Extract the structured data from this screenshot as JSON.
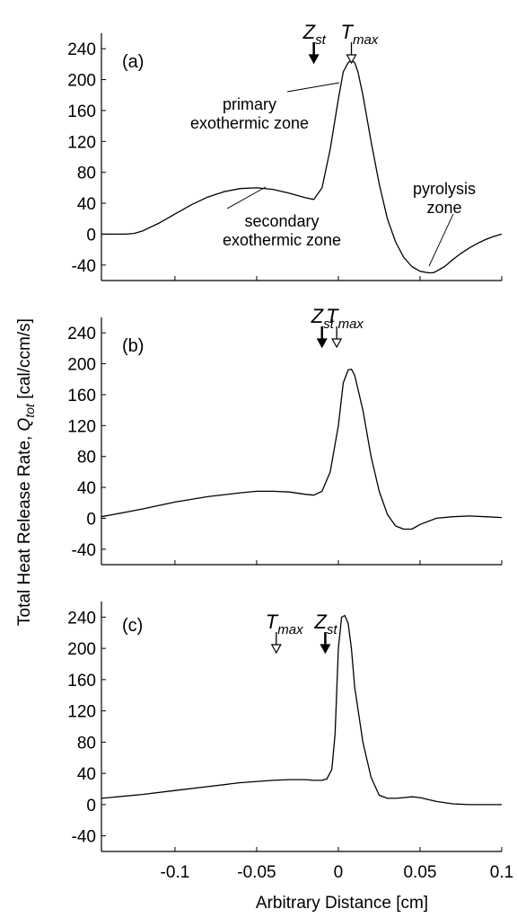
{
  "chart_data": {
    "type": "line",
    "xlabel": "Arbitrary Distance [cm]",
    "ylabel": {
      "main": "Total Heat Release Rate, ",
      "symbol": "Q",
      "sub": "tot",
      "unit": " [cal/ccm/s]"
    },
    "xlim": [
      -0.145,
      0.1
    ],
    "ylim": [
      -60,
      260
    ],
    "xticks": [
      -0.1,
      -0.05,
      0,
      0.05,
      0.1
    ],
    "xtick_labels": [
      "-0.1",
      "-0.05",
      "0",
      "0.05",
      "0.1"
    ],
    "yticks": [
      -40,
      0,
      40,
      80,
      120,
      160,
      200,
      240
    ],
    "ytick_labels": [
      "-40",
      "0",
      "40",
      "80",
      "120",
      "160",
      "200",
      "240"
    ],
    "panels": [
      {
        "label": "(a)",
        "x": [
          -0.145,
          -0.13,
          -0.125,
          -0.12,
          -0.11,
          -0.1,
          -0.09,
          -0.08,
          -0.07,
          -0.06,
          -0.05,
          -0.04,
          -0.03,
          -0.02,
          -0.015,
          -0.01,
          -0.005,
          0,
          0.003,
          0.006,
          0.008,
          0.01,
          0.012,
          0.015,
          0.02,
          0.025,
          0.03,
          0.035,
          0.04,
          0.045,
          0.05,
          0.055,
          0.058,
          0.06,
          0.065,
          0.07,
          0.075,
          0.08,
          0.085,
          0.09,
          0.095,
          0.1
        ],
        "y": [
          0,
          0,
          1,
          4,
          14,
          26,
          38,
          48,
          55,
          59,
          60,
          58,
          53,
          47,
          45,
          60,
          110,
          175,
          210,
          222,
          225,
          222,
          210,
          180,
          120,
          65,
          20,
          -10,
          -30,
          -42,
          -48,
          -50,
          -50,
          -48,
          -42,
          -33,
          -25,
          -18,
          -12,
          -7,
          -3,
          0
        ],
        "markers": [
          {
            "label": "Z",
            "sub": "st",
            "x": -0.015,
            "style": "solid"
          },
          {
            "label": "T",
            "sub": "max",
            "x": 0.008,
            "style": "open"
          }
        ],
        "annotations": [
          {
            "lines": [
              "primary",
              "exothermic zone"
            ]
          },
          {
            "lines": [
              "secondary",
              "exothermic zone"
            ]
          },
          {
            "lines": [
              "pyrolysis",
              "zone"
            ]
          }
        ]
      },
      {
        "label": "(b)",
        "x": [
          -0.145,
          -0.13,
          -0.12,
          -0.1,
          -0.08,
          -0.06,
          -0.05,
          -0.04,
          -0.03,
          -0.02,
          -0.015,
          -0.01,
          -0.005,
          0,
          0.003,
          0.006,
          0.008,
          0.01,
          0.015,
          0.02,
          0.025,
          0.03,
          0.035,
          0.04,
          0.045,
          0.05,
          0.06,
          0.07,
          0.08,
          0.09,
          0.1
        ],
        "y": [
          2,
          8,
          12,
          21,
          28,
          33,
          35,
          35,
          34,
          31,
          30,
          35,
          60,
          120,
          175,
          192,
          193,
          185,
          140,
          80,
          35,
          5,
          -10,
          -14,
          -14,
          -8,
          0,
          2,
          3,
          2,
          1
        ],
        "markers": [
          {
            "label": "Z",
            "sub": "st",
            "x": -0.01,
            "style": "solid"
          },
          {
            "label": "T",
            "sub": "max",
            "x": -0.001,
            "style": "open"
          }
        ],
        "annotations": []
      },
      {
        "label": "(c)",
        "x": [
          -0.145,
          -0.12,
          -0.1,
          -0.08,
          -0.06,
          -0.04,
          -0.03,
          -0.02,
          -0.015,
          -0.01,
          -0.007,
          -0.004,
          -0.002,
          0,
          0.002,
          0.004,
          0.006,
          0.008,
          0.01,
          0.015,
          0.02,
          0.025,
          0.03,
          0.035,
          0.04,
          0.045,
          0.05,
          0.06,
          0.07,
          0.08,
          0.09,
          0.1
        ],
        "y": [
          8,
          13,
          18,
          23,
          28,
          31,
          32,
          32,
          31,
          31,
          33,
          45,
          90,
          200,
          240,
          242,
          232,
          200,
          150,
          80,
          35,
          12,
          8,
          8,
          9,
          10,
          9,
          4,
          1,
          0,
          0,
          0
        ],
        "markers": [
          {
            "label": "T",
            "sub": "max",
            "x": -0.038,
            "style": "open"
          },
          {
            "label": "Z",
            "sub": "st",
            "x": -0.008,
            "style": "solid"
          }
        ],
        "annotations": []
      }
    ]
  }
}
